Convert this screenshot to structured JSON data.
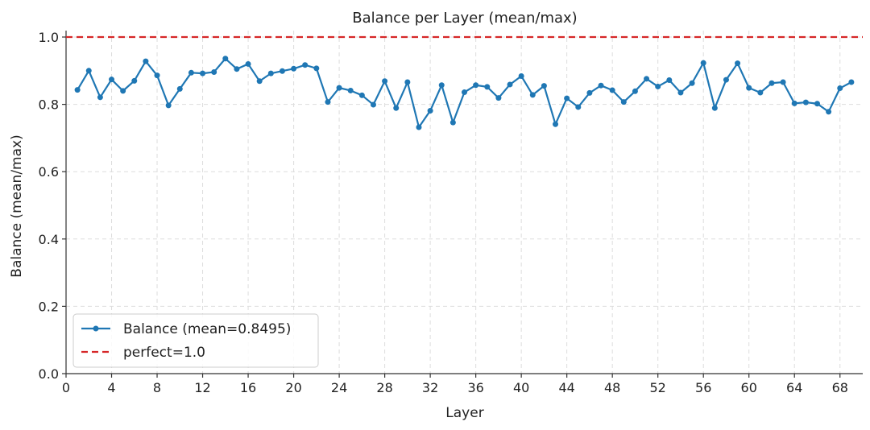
{
  "chart_data": {
    "type": "line",
    "title": "Balance per Layer (mean/max)",
    "xlabel": "Layer",
    "ylabel": "Balance (mean/max)",
    "xlim": [
      0,
      70
    ],
    "ylim": [
      0,
      1.0
    ],
    "xticks": [
      0,
      4,
      8,
      12,
      16,
      20,
      24,
      28,
      32,
      36,
      40,
      44,
      48,
      52,
      56,
      60,
      64,
      68
    ],
    "yticks": [
      0.0,
      0.2,
      0.4,
      0.6,
      0.8,
      1.0
    ],
    "xtick_labels": [
      "0",
      "4",
      "8",
      "12",
      "16",
      "20",
      "24",
      "28",
      "32",
      "36",
      "40",
      "44",
      "48",
      "52",
      "56",
      "60",
      "64",
      "68"
    ],
    "ytick_labels": [
      "0.0",
      "0.2",
      "0.4",
      "0.6",
      "0.8",
      "1.0"
    ],
    "grid": true,
    "legend_position": "bottom-left",
    "series": [
      {
        "name": "Balance (mean=0.8495)",
        "color": "#1f77b4",
        "marker": "circle",
        "x": [
          1,
          2,
          3,
          4,
          5,
          6,
          7,
          8,
          9,
          10,
          11,
          12,
          13,
          14,
          15,
          16,
          17,
          18,
          19,
          20,
          21,
          22,
          23,
          24,
          25,
          26,
          27,
          28,
          29,
          30,
          31,
          32,
          33,
          34,
          35,
          36,
          37,
          38,
          39,
          40,
          41,
          42,
          43,
          44,
          45,
          46,
          47,
          48,
          49,
          50,
          51,
          52,
          53,
          54,
          55,
          56,
          57,
          58,
          59,
          60,
          61,
          62,
          63,
          64,
          65,
          66,
          67,
          68,
          69
        ],
        "values": [
          0.843,
          0.9,
          0.821,
          0.874,
          0.84,
          0.87,
          0.928,
          0.886,
          0.797,
          0.846,
          0.894,
          0.892,
          0.896,
          0.936,
          0.905,
          0.92,
          0.869,
          0.892,
          0.899,
          0.906,
          0.917,
          0.907,
          0.807,
          0.849,
          0.841,
          0.827,
          0.799,
          0.869,
          0.789,
          0.866,
          0.732,
          0.781,
          0.857,
          0.746,
          0.836,
          0.857,
          0.852,
          0.819,
          0.859,
          0.884,
          0.828,
          0.855,
          0.741,
          0.818,
          0.792,
          0.834,
          0.856,
          0.842,
          0.807,
          0.839,
          0.876,
          0.853,
          0.872,
          0.835,
          0.863,
          0.923,
          0.789,
          0.873,
          0.922,
          0.849,
          0.835,
          0.863,
          0.866,
          0.803,
          0.806,
          0.802,
          0.778,
          0.848,
          0.866
        ]
      },
      {
        "name": "perfect=1.0",
        "color": "#d62728",
        "style": "dashed",
        "y": 1.0
      }
    ]
  }
}
